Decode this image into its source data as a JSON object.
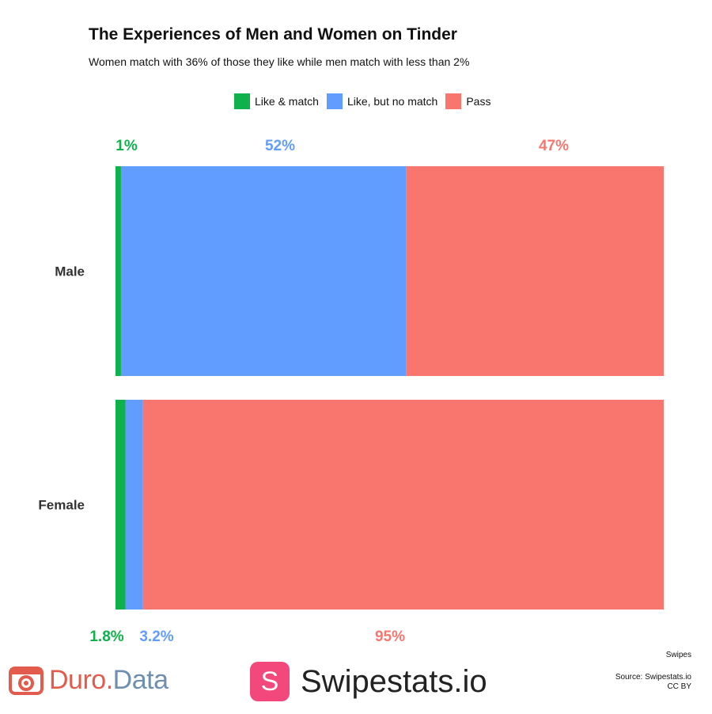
{
  "chart_data": {
    "type": "bar",
    "orientation": "horizontal",
    "stacked": true,
    "title": "The Experiences of Men and Women on Tinder",
    "subtitle": "Women match with 36% of those they like while men match with less than 2%",
    "categories": [
      "Male",
      "Female"
    ],
    "xlim": [
      0,
      100
    ],
    "grid": false,
    "legend_position": "top",
    "series": [
      {
        "name": "Like & match",
        "color": "#0fb14a",
        "values": [
          1,
          1.8
        ],
        "labels": [
          "1%",
          "1.8%"
        ]
      },
      {
        "name": "Like, but no match",
        "color": "#619cff",
        "values": [
          52,
          3.2
        ],
        "labels": [
          "52%",
          "3.2%"
        ]
      },
      {
        "name": "Pass",
        "color": "#f8766d",
        "values": [
          47,
          95
        ],
        "labels": [
          "47%",
          "95%"
        ]
      }
    ]
  },
  "footer": {
    "caption": "Swipes",
    "source": "Source: Swipestats.io",
    "license": "CC BY"
  },
  "logos": {
    "duro_part1": "Duro",
    "duro_dot": ".",
    "duro_part2": "Data",
    "swipestats_letter": "S",
    "swipestats_name": "Swipestats.io"
  }
}
